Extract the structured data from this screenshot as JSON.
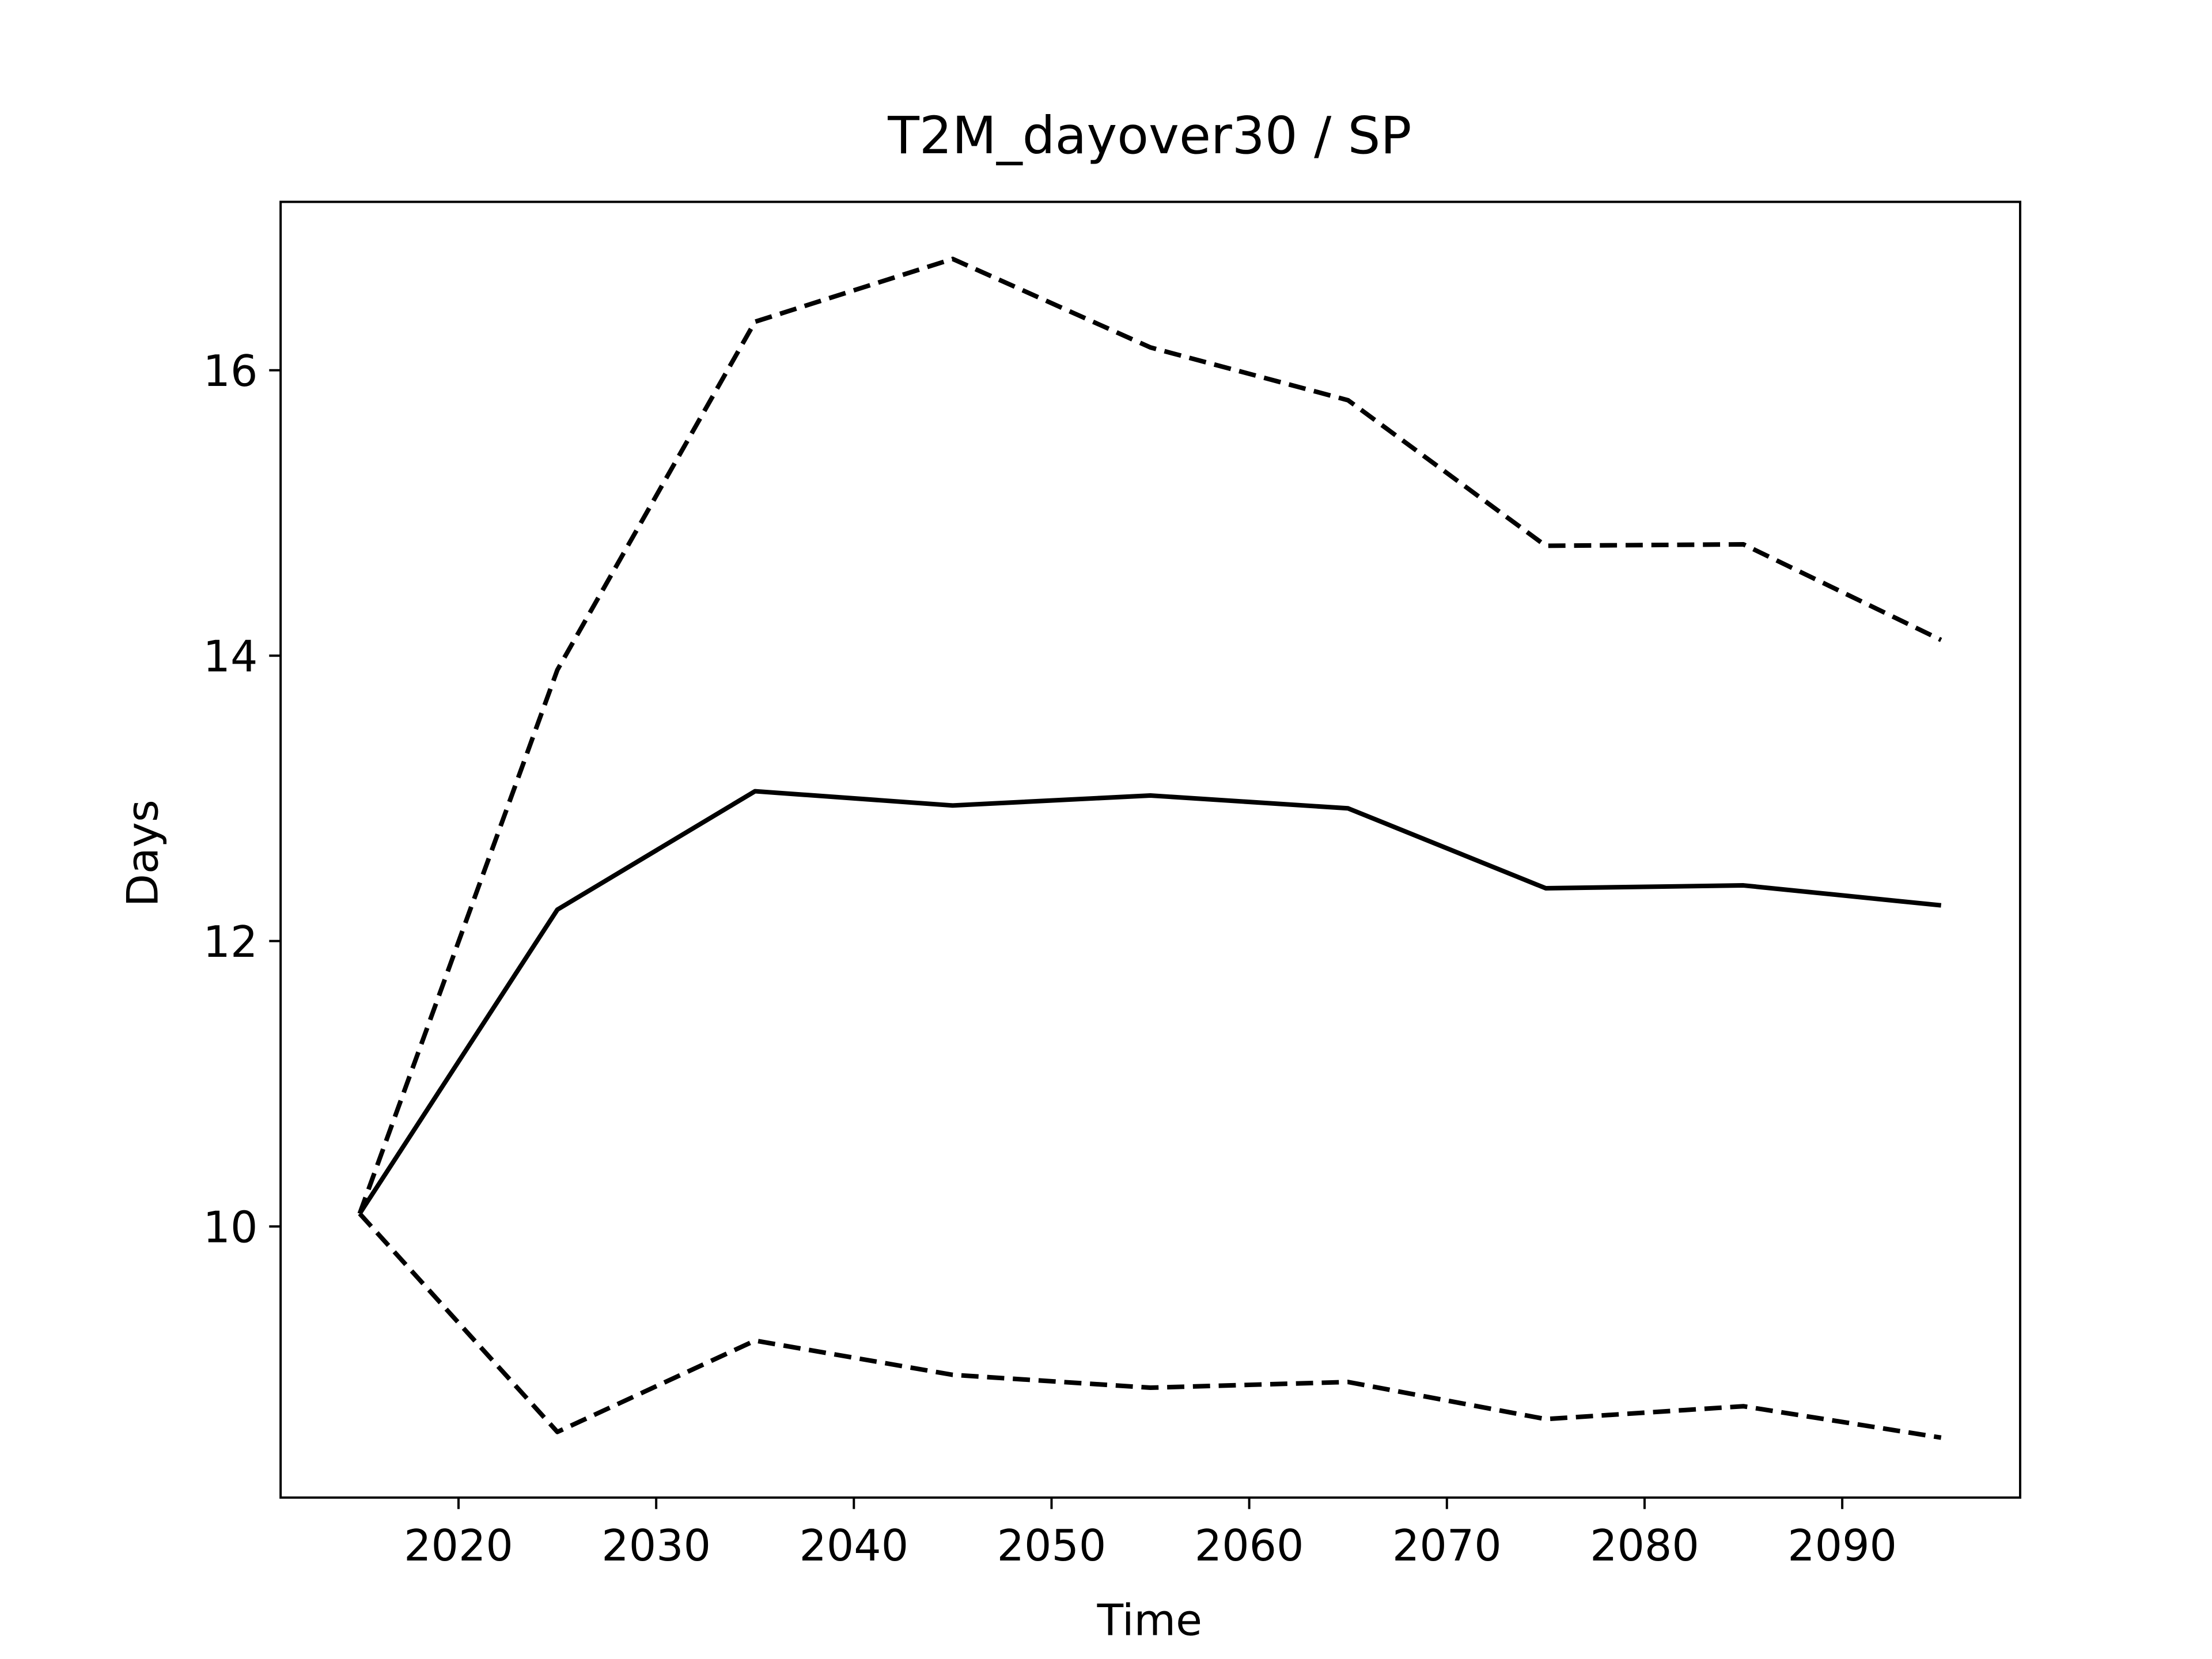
{
  "chart_data": {
    "type": "line",
    "title": "T2M_dayover30 / SP",
    "xlabel": "Time",
    "ylabel": "Days",
    "x": [
      2015,
      2025,
      2035,
      2045,
      2055,
      2065,
      2075,
      2085,
      2095
    ],
    "series": [
      {
        "color": "#000000",
        "dashed": false,
        "values": [
          10.09,
          12.22,
          13.05,
          12.95,
          13.02,
          12.93,
          12.37,
          12.39,
          12.25
        ]
      },
      {
        "color": "#000000",
        "dashed": true,
        "values": [
          10.09,
          13.9,
          16.34,
          16.78,
          16.16,
          15.79,
          14.77,
          14.78,
          14.11
        ]
      },
      {
        "color": "#000000",
        "dashed": true,
        "values": [
          10.09,
          8.56,
          9.2,
          8.96,
          8.87,
          8.91,
          8.65,
          8.74,
          8.52
        ]
      }
    ],
    "xlim": [
      2011,
      2099
    ],
    "ylim": [
      8.1,
      17.18
    ],
    "xticks": [
      2020,
      2030,
      2040,
      2050,
      2060,
      2070,
      2080,
      2090
    ],
    "yticks": [
      10,
      12,
      14,
      16
    ],
    "grid": false
  }
}
